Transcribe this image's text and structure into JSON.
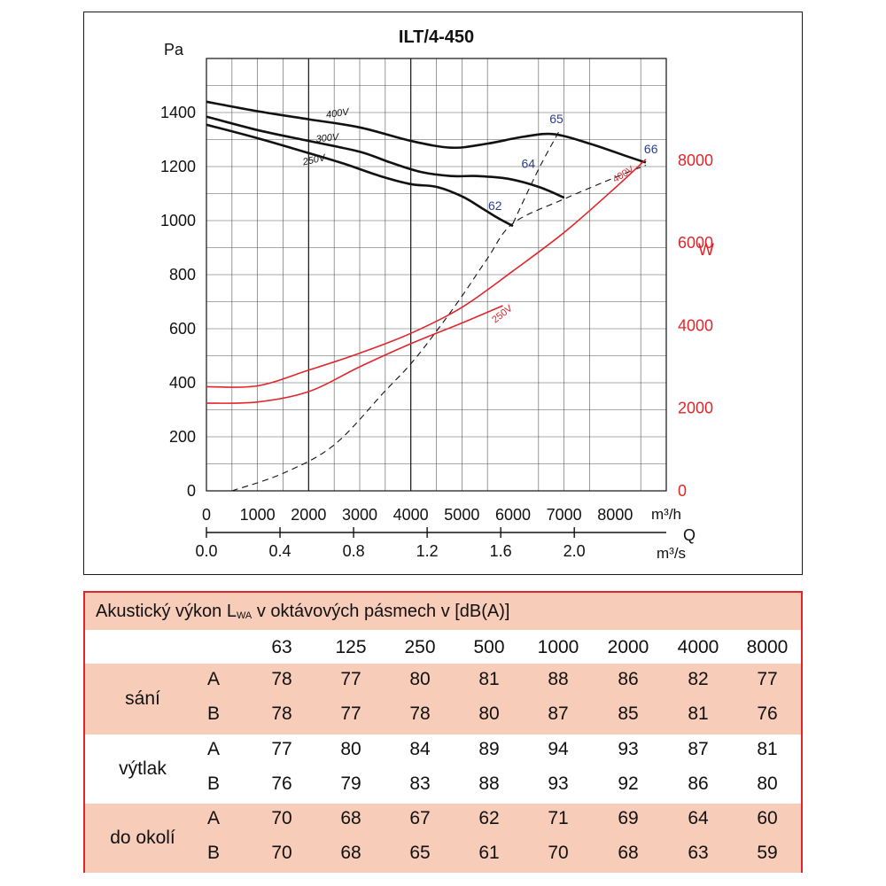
{
  "chart_data": {
    "type": "line",
    "title": "ILT/4-450",
    "y_label_left": "Pa",
    "y_label_right": "W",
    "x_unit_top": "m³/h",
    "x_axis_q": "Q",
    "x_unit_bottom": "m³/s",
    "x_ticks_top": [
      "0",
      "1000",
      "2000",
      "3000",
      "4000",
      "5000",
      "6000",
      "7000",
      "8000"
    ],
    "x_ticks_bottom": [
      "0.0",
      "0.4",
      "0.8",
      "1.2",
      "1.6",
      "2.0"
    ],
    "y_ticks_left": [
      "0",
      "200",
      "400",
      "600",
      "800",
      "1000",
      "1200",
      "1400"
    ],
    "y_ticks_right": [
      "0",
      "2000",
      "4000",
      "6000",
      "8000"
    ],
    "xlim": [
      0,
      9000
    ],
    "ylim_left": [
      0,
      1600
    ],
    "ylim_right": [
      0,
      10460
    ],
    "grid": true,
    "pressure_series": [
      {
        "name": "400V",
        "points": [
          [
            0,
            1440
          ],
          [
            1000,
            1405
          ],
          [
            2000,
            1375
          ],
          [
            3000,
            1345
          ],
          [
            4000,
            1295
          ],
          [
            4800,
            1270
          ],
          [
            5500,
            1285
          ],
          [
            6200,
            1310
          ],
          [
            6800,
            1320
          ],
          [
            7500,
            1285
          ],
          [
            8200,
            1240
          ],
          [
            8600,
            1215
          ]
        ]
      },
      {
        "name": "300V",
        "points": [
          [
            0,
            1385
          ],
          [
            1000,
            1335
          ],
          [
            2000,
            1295
          ],
          [
            3000,
            1255
          ],
          [
            3600,
            1215
          ],
          [
            4200,
            1180
          ],
          [
            4800,
            1165
          ],
          [
            5300,
            1165
          ],
          [
            5900,
            1155
          ],
          [
            6500,
            1125
          ],
          [
            7000,
            1085
          ]
        ]
      },
      {
        "name": "250V",
        "points": [
          [
            0,
            1355
          ],
          [
            1000,
            1305
          ],
          [
            2000,
            1250
          ],
          [
            2700,
            1210
          ],
          [
            3400,
            1165
          ],
          [
            4000,
            1135
          ],
          [
            4500,
            1125
          ],
          [
            5000,
            1090
          ],
          [
            5400,
            1045
          ],
          [
            5700,
            1010
          ],
          [
            6000,
            980
          ]
        ]
      }
    ],
    "efficiency_series": [
      {
        "name": "efficiency",
        "points": [
          [
            500,
            0
          ],
          [
            1500,
            65
          ],
          [
            2500,
            170
          ],
          [
            3500,
            370
          ],
          [
            4000,
            470
          ],
          [
            4500,
            590
          ],
          [
            5000,
            720
          ],
          [
            5500,
            860
          ],
          [
            6000,
            990
          ],
          [
            7000,
            1080
          ],
          [
            8000,
            1160
          ],
          [
            8600,
            1205
          ]
        ],
        "style": "dashed"
      },
      {
        "name": "efficiency",
        "points": [
          [
            6000,
            990
          ],
          [
            6500,
            1190
          ],
          [
            6900,
            1330
          ]
        ],
        "style": "dashed"
      }
    ],
    "efficiency_labels": [
      {
        "label": "62",
        "x": 5650,
        "y": 1040
      },
      {
        "label": "64",
        "x": 6300,
        "y": 1195
      },
      {
        "label": "65",
        "x": 6850,
        "y": 1360
      },
      {
        "label": "66",
        "x": 8700,
        "y": 1250
      }
    ],
    "power_series": [
      {
        "name": "400V",
        "points": [
          [
            0,
            2520
          ],
          [
            1000,
            2540
          ],
          [
            2000,
            2920
          ],
          [
            3000,
            3330
          ],
          [
            4000,
            3810
          ],
          [
            5000,
            4440
          ],
          [
            6000,
            5320
          ],
          [
            7000,
            6250
          ],
          [
            8000,
            7330
          ],
          [
            8600,
            8020
          ]
        ]
      },
      {
        "name": "250V",
        "points": [
          [
            0,
            2120
          ],
          [
            1000,
            2150
          ],
          [
            2000,
            2400
          ],
          [
            3000,
            3000
          ],
          [
            4000,
            3560
          ],
          [
            5000,
            4060
          ],
          [
            5800,
            4480
          ]
        ]
      }
    ],
    "curve_labels": {
      "p400": "400V",
      "p300": "300V",
      "p250": "250V",
      "w400": "400V",
      "w250": "250V"
    }
  },
  "table": {
    "title_main": "Akustický výkon L",
    "title_sub": "WA",
    "title_rest": " v oktávových pásmech v [dB(A)]",
    "bands": [
      "63",
      "125",
      "250",
      "500",
      "1000",
      "2000",
      "4000",
      "8000"
    ],
    "groups": [
      {
        "name": "sání",
        "rows": [
          {
            "label": "A",
            "values": [
              "78",
              "77",
              "80",
              "81",
              "88",
              "86",
              "82",
              "77"
            ]
          },
          {
            "label": "B",
            "values": [
              "78",
              "77",
              "78",
              "80",
              "87",
              "85",
              "81",
              "76"
            ]
          }
        ]
      },
      {
        "name": "výtlak",
        "rows": [
          {
            "label": "A",
            "values": [
              "77",
              "80",
              "84",
              "89",
              "94",
              "93",
              "87",
              "81"
            ]
          },
          {
            "label": "B",
            "values": [
              "76",
              "79",
              "83",
              "88",
              "93",
              "92",
              "86",
              "80"
            ]
          }
        ]
      },
      {
        "name": "do okolí",
        "rows": [
          {
            "label": "A",
            "values": [
              "70",
              "68",
              "67",
              "62",
              "71",
              "69",
              "64",
              "60"
            ]
          },
          {
            "label": "B",
            "values": [
              "70",
              "68",
              "65",
              "61",
              "70",
              "68",
              "63",
              "59"
            ]
          }
        ]
      }
    ]
  },
  "colors": {
    "pressure": "#111111",
    "power": "#e0262b",
    "efficiency_label": "#2c3e8c",
    "table_band": "#f7ccb8",
    "table_border": "#e0262b"
  }
}
